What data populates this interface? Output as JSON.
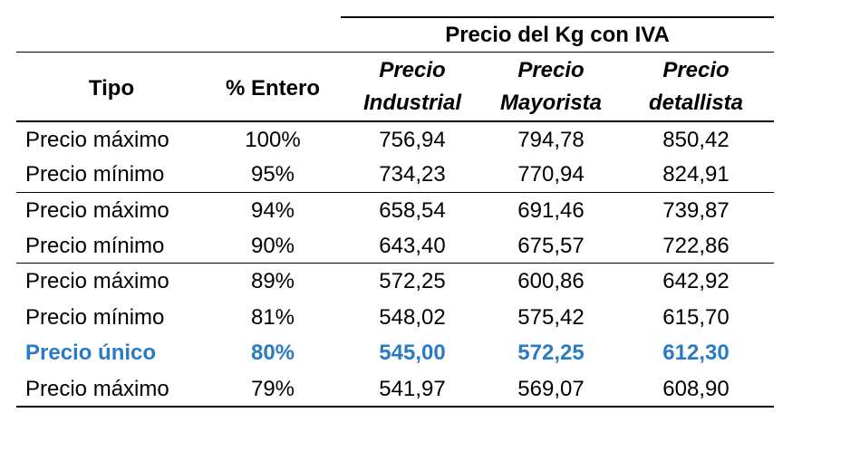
{
  "table": {
    "group_header": "Precio del Kg con IVA",
    "columns": {
      "tipo": "Tipo",
      "entero": "% Entero",
      "industrial": [
        "Precio",
        "Industrial"
      ],
      "mayorista": [
        "Precio",
        "Mayorista"
      ],
      "detallista": [
        "Precio",
        "detallista"
      ]
    },
    "rows": [
      {
        "tipo": "Precio máximo",
        "entero": "100%",
        "industrial": "756,94",
        "mayorista": "794,78",
        "detallista": "850,42"
      },
      {
        "tipo": "Precio mínimo",
        "entero": "95%",
        "industrial": "734,23",
        "mayorista": "770,94",
        "detallista": "824,91"
      },
      {
        "tipo": "Precio máximo",
        "entero": "94%",
        "industrial": "658,54",
        "mayorista": "691,46",
        "detallista": "739,87"
      },
      {
        "tipo": "Precio mínimo",
        "entero": "90%",
        "industrial": "643,40",
        "mayorista": "675,57",
        "detallista": "722,86"
      },
      {
        "tipo": "Precio máximo",
        "entero": "89%",
        "industrial": "572,25",
        "mayorista": "600,86",
        "detallista": "642,92"
      },
      {
        "tipo": "Precio mínimo",
        "entero": "81%",
        "industrial": "548,02",
        "mayorista": "575,42",
        "detallista": "615,70"
      },
      {
        "tipo": "Precio único",
        "entero": "80%",
        "industrial": "545,00",
        "mayorista": "572,25",
        "detallista": "612,30"
      },
      {
        "tipo": "Precio máximo",
        "entero": "79%",
        "industrial": "541,97",
        "mayorista": "569,07",
        "detallista": "608,90"
      }
    ],
    "highlight_color": "#2a7bc4"
  }
}
